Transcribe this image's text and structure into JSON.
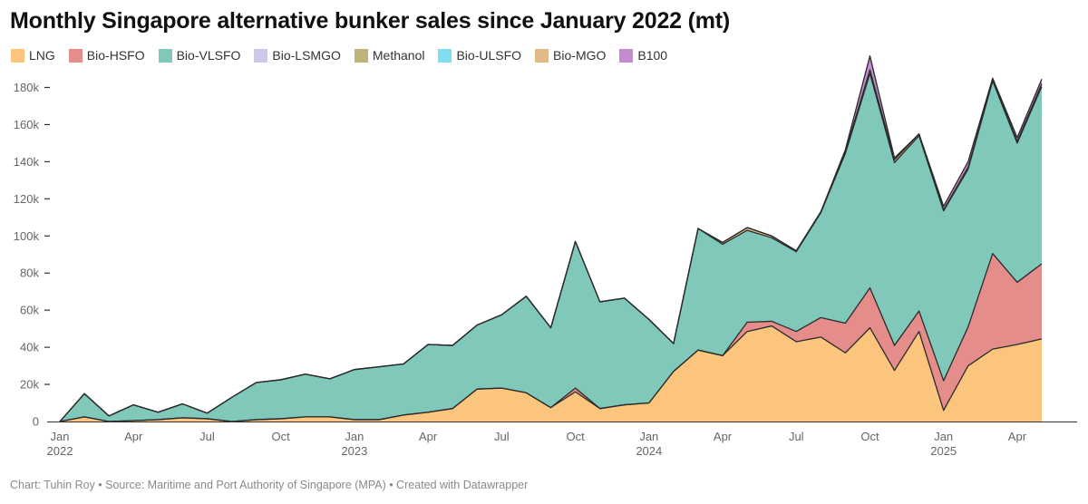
{
  "title": "Monthly Singapore alternative bunker sales since January 2022 (mt)",
  "footer": "Chart: Tuhin Roy • Source: Maritime and Port Authority of Singapore (MPA) • Created with Datawrapper",
  "chart_data": {
    "type": "area",
    "stacked": true,
    "title": "Monthly Singapore alternative bunker sales since January 2022 (mt)",
    "xlabel": "",
    "ylabel": "",
    "ylim": [
      0,
      190000
    ],
    "grid": false,
    "legend_position": "top-left",
    "y_ticks": [
      {
        "value": 0,
        "label": "0"
      },
      {
        "value": 20000,
        "label": "20k"
      },
      {
        "value": 40000,
        "label": "40k"
      },
      {
        "value": 60000,
        "label": "60k"
      },
      {
        "value": 80000,
        "label": "80k"
      },
      {
        "value": 100000,
        "label": "100k"
      },
      {
        "value": 120000,
        "label": "120k"
      },
      {
        "value": 140000,
        "label": "140k"
      },
      {
        "value": 160000,
        "label": "160k"
      },
      {
        "value": 180000,
        "label": "180k"
      }
    ],
    "x_ticks": [
      {
        "index": 0,
        "line1": "Jan",
        "line2": "2022"
      },
      {
        "index": 3,
        "line1": "Apr",
        "line2": ""
      },
      {
        "index": 6,
        "line1": "Jul",
        "line2": ""
      },
      {
        "index": 9,
        "line1": "Oct",
        "line2": ""
      },
      {
        "index": 12,
        "line1": "Jan",
        "line2": "2023"
      },
      {
        "index": 15,
        "line1": "Apr",
        "line2": ""
      },
      {
        "index": 18,
        "line1": "Jul",
        "line2": ""
      },
      {
        "index": 21,
        "line1": "Oct",
        "line2": ""
      },
      {
        "index": 24,
        "line1": "Jan",
        "line2": "2024"
      },
      {
        "index": 27,
        "line1": "Apr",
        "line2": ""
      },
      {
        "index": 30,
        "line1": "Jul",
        "line2": ""
      },
      {
        "index": 33,
        "line1": "Oct",
        "line2": ""
      },
      {
        "index": 36,
        "line1": "Jan",
        "line2": "2025"
      },
      {
        "index": 39,
        "line1": "Apr",
        "line2": ""
      }
    ],
    "x": [
      "2022-01",
      "2022-02",
      "2022-03",
      "2022-04",
      "2022-05",
      "2022-06",
      "2022-07",
      "2022-08",
      "2022-09",
      "2022-10",
      "2022-11",
      "2022-12",
      "2023-01",
      "2023-02",
      "2023-03",
      "2023-04",
      "2023-05",
      "2023-06",
      "2023-07",
      "2023-08",
      "2023-09",
      "2023-10",
      "2023-11",
      "2023-12",
      "2024-01",
      "2024-02",
      "2024-03",
      "2024-04",
      "2024-05",
      "2024-06",
      "2024-07",
      "2024-08",
      "2024-09",
      "2024-10",
      "2024-11",
      "2024-12",
      "2025-01",
      "2025-02",
      "2025-03",
      "2025-04",
      "2025-05"
    ],
    "series": [
      {
        "name": "LNG",
        "color": "#fbc57d",
        "values": [
          0,
          2500,
          0,
          500,
          1000,
          2000,
          1500,
          0,
          1000,
          1500,
          2500,
          2500,
          1000,
          1000,
          3500,
          5000,
          7000,
          17500,
          18000,
          15500,
          7500,
          16000,
          7000,
          9000,
          10000,
          27000,
          38500,
          35500,
          48500,
          51500,
          43000,
          45500,
          37000,
          50500,
          27500,
          48500,
          6000,
          30000,
          39000,
          41500,
          44500
        ]
      },
      {
        "name": "Bio-HSFO",
        "color": "#e48d8b",
        "values": [
          0,
          0,
          0,
          0,
          0,
          0,
          0,
          0,
          0,
          0,
          0,
          0,
          0,
          0,
          0,
          0,
          0,
          0,
          0,
          0,
          0,
          2000,
          0,
          0,
          0,
          0,
          0,
          0,
          5000,
          2500,
          5500,
          10500,
          16000,
          21500,
          13500,
          11000,
          16000,
          21000,
          51500,
          33500,
          40500
        ]
      },
      {
        "name": "Bio-VLSFO",
        "color": "#80c8b9",
        "values": [
          0,
          12500,
          3000,
          8500,
          4000,
          7500,
          3000,
          13000,
          20000,
          21000,
          23000,
          20500,
          27000,
          28500,
          27500,
          36500,
          34000,
          34500,
          39500,
          52000,
          43000,
          79000,
          57500,
          57500,
          45000,
          15000,
          65500,
          60000,
          49500,
          45000,
          43000,
          56500,
          91500,
          115500,
          98500,
          94500,
          91500,
          85000,
          93000,
          75000,
          95500
        ]
      },
      {
        "name": "Bio-LSMGO",
        "color": "#cbc9e7",
        "values": [
          0,
          0,
          0,
          0,
          0,
          0,
          0,
          0,
          0,
          0,
          0,
          0,
          0,
          0,
          0,
          0,
          0,
          0,
          0,
          0,
          0,
          0,
          0,
          0,
          0,
          0,
          0,
          0,
          0,
          0,
          0,
          0,
          0,
          0,
          0,
          0,
          0,
          0,
          0,
          0,
          0
        ]
      },
      {
        "name": "Methanol",
        "color": "#beb479",
        "values": [
          0,
          0,
          0,
          0,
          0,
          0,
          0,
          0,
          0,
          0,
          0,
          0,
          0,
          0,
          0,
          0,
          0,
          0,
          0,
          0,
          0,
          0,
          0,
          0,
          0,
          0,
          0,
          0,
          0,
          0,
          0,
          0,
          0,
          0,
          0,
          0,
          0,
          0,
          0,
          0,
          0
        ]
      },
      {
        "name": "Bio-ULSFO",
        "color": "#7fdff0",
        "values": [
          0,
          0,
          0,
          0,
          0,
          0,
          0,
          0,
          0,
          0,
          0,
          0,
          0,
          0,
          0,
          0,
          0,
          0,
          0,
          0,
          0,
          0,
          0,
          0,
          0,
          0,
          0,
          0,
          0,
          0,
          0,
          0,
          0,
          0,
          0,
          0,
          0,
          0,
          0,
          0,
          0
        ]
      },
      {
        "name": "Bio-MGO",
        "color": "#e3b887",
        "values": [
          0,
          0,
          0,
          0,
          0,
          0,
          0,
          0,
          0,
          0,
          0,
          0,
          0,
          0,
          0,
          0,
          0,
          0,
          0,
          0,
          0,
          0,
          0,
          0,
          0,
          0,
          0,
          1000,
          1500,
          1000,
          500,
          500,
          1000,
          2000,
          1500,
          1000,
          500,
          1000,
          500,
          1000,
          1500
        ]
      },
      {
        "name": "B100",
        "color": "#c58bd1",
        "values": [
          0,
          0,
          0,
          0,
          0,
          0,
          0,
          0,
          0,
          0,
          0,
          0,
          0,
          0,
          0,
          0,
          0,
          0,
          0,
          0,
          0,
          0,
          0,
          0,
          0,
          0,
          0,
          0,
          0,
          0,
          0,
          0,
          1000,
          7500,
          1000,
          0,
          2000,
          3000,
          1000,
          2000,
          2500
        ]
      }
    ]
  }
}
